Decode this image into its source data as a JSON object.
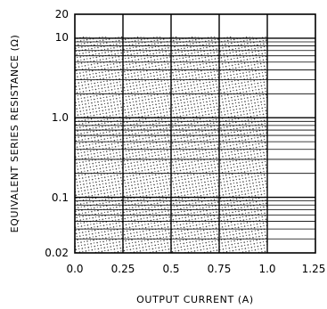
{
  "chart_data": {
    "type": "area",
    "title": "",
    "xlabel": "OUTPUT CURRENT (A)",
    "ylabel": "EQUIVALENT SERIES RESISTANCE (Ω)",
    "x_ticks": [
      "0.0",
      "0.25",
      "0.5",
      "0.75",
      "1.0",
      "1.25"
    ],
    "y_ticks": [
      "0.02",
      "0.1",
      "1.0",
      "10",
      "20"
    ],
    "xlim": [
      0,
      1.25
    ],
    "ylim": [
      0.02,
      20
    ],
    "y_scale": "log",
    "grid": true,
    "stable_region": {
      "x": [
        0,
        1.0
      ],
      "y": [
        0.02,
        10
      ],
      "fill": "stippled"
    },
    "colors": {
      "line": "#000000",
      "background": "#ffffff",
      "stipple": "#000000"
    }
  }
}
